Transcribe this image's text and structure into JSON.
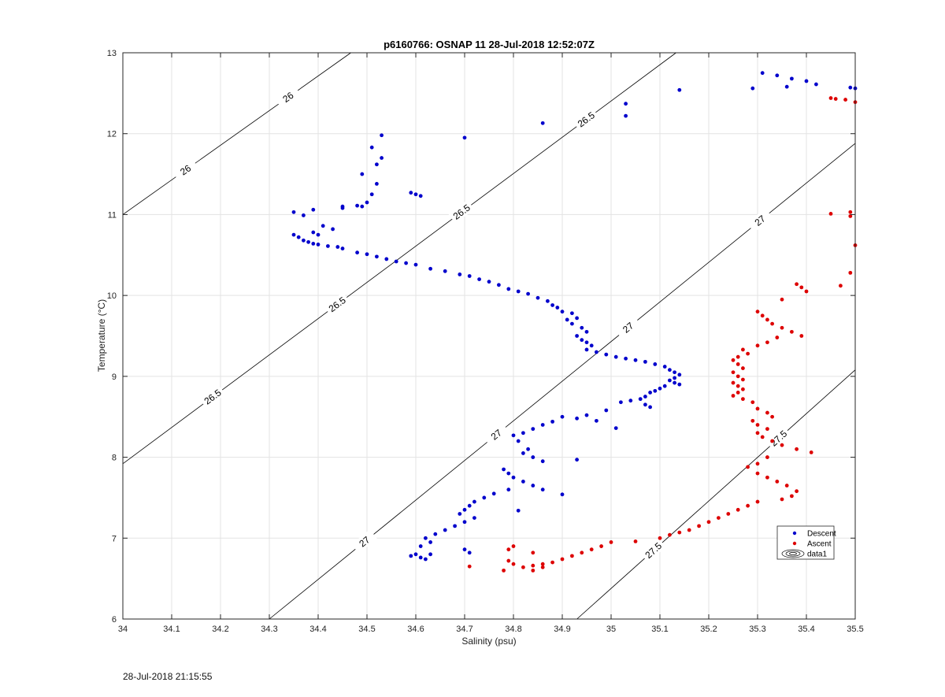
{
  "chart_data": {
    "type": "scatter",
    "title": "p6160766: OSNAP 11 28-Jul-2018 12:52:07Z",
    "xlabel": "Salinity (psu)",
    "ylabel": "Temperature (°C)",
    "xlim": [
      34,
      35.5
    ],
    "ylim": [
      6,
      13
    ],
    "xticks": [
      "34",
      "34.1",
      "34.2",
      "34.3",
      "34.4",
      "34.5",
      "34.6",
      "34.7",
      "34.8",
      "34.9",
      "35",
      "35.1",
      "35.2",
      "35.3",
      "35.4",
      "35.5"
    ],
    "yticks": [
      "6",
      "7",
      "8",
      "9",
      "10",
      "11",
      "12",
      "13"
    ],
    "grid": true,
    "legend_position": "lower-right",
    "isopycnals": [
      {
        "label": "26",
        "points": [
          [
            34.0,
            11.0
          ],
          [
            34.467,
            13.0
          ]
        ]
      },
      {
        "label": "26.5",
        "points": [
          [
            34.0,
            7.92
          ],
          [
            35.133,
            13.0
          ]
        ]
      },
      {
        "label": "27",
        "points": [
          [
            34.3,
            6.0
          ],
          [
            35.5,
            11.88
          ]
        ]
      },
      {
        "label": "27.5",
        "points": [
          [
            34.93,
            6.0
          ],
          [
            35.5,
            9.08
          ]
        ]
      }
    ],
    "series": [
      {
        "name": "Descent",
        "color": "#0000cc",
        "points": [
          [
            34.53,
            11.98
          ],
          [
            34.51,
            11.83
          ],
          [
            34.53,
            11.7
          ],
          [
            34.52,
            11.62
          ],
          [
            34.49,
            11.5
          ],
          [
            34.52,
            11.38
          ],
          [
            34.51,
            11.25
          ],
          [
            34.59,
            11.27
          ],
          [
            34.6,
            11.25
          ],
          [
            34.61,
            11.23
          ],
          [
            34.7,
            11.95
          ],
          [
            34.86,
            12.13
          ],
          [
            35.03,
            12.37
          ],
          [
            35.03,
            12.22
          ],
          [
            35.14,
            12.54
          ],
          [
            35.31,
            12.75
          ],
          [
            35.34,
            12.72
          ],
          [
            35.37,
            12.68
          ],
          [
            35.4,
            12.65
          ],
          [
            35.42,
            12.61
          ],
          [
            35.29,
            12.56
          ],
          [
            35.36,
            12.58
          ],
          [
            35.49,
            12.57
          ],
          [
            35.5,
            12.56
          ],
          [
            34.35,
            11.03
          ],
          [
            34.37,
            10.99
          ],
          [
            34.39,
            11.06
          ],
          [
            34.45,
            11.1
          ],
          [
            34.48,
            11.11
          ],
          [
            34.45,
            11.08
          ],
          [
            34.5,
            11.15
          ],
          [
            34.49,
            11.1
          ],
          [
            34.41,
            10.86
          ],
          [
            34.43,
            10.82
          ],
          [
            34.39,
            10.78
          ],
          [
            34.4,
            10.75
          ],
          [
            34.35,
            10.75
          ],
          [
            34.36,
            10.72
          ],
          [
            34.37,
            10.68
          ],
          [
            34.38,
            10.66
          ],
          [
            34.39,
            10.64
          ],
          [
            34.4,
            10.63
          ],
          [
            34.42,
            10.61
          ],
          [
            34.44,
            10.6
          ],
          [
            34.45,
            10.58
          ],
          [
            34.48,
            10.53
          ],
          [
            34.5,
            10.51
          ],
          [
            34.52,
            10.48
          ],
          [
            34.54,
            10.45
          ],
          [
            34.56,
            10.42
          ],
          [
            34.58,
            10.4
          ],
          [
            34.6,
            10.38
          ],
          [
            34.63,
            10.33
          ],
          [
            34.66,
            10.3
          ],
          [
            34.69,
            10.26
          ],
          [
            34.71,
            10.24
          ],
          [
            34.73,
            10.2
          ],
          [
            34.75,
            10.17
          ],
          [
            34.77,
            10.13
          ],
          [
            34.79,
            10.08
          ],
          [
            34.81,
            10.05
          ],
          [
            34.83,
            10.02
          ],
          [
            34.85,
            9.97
          ],
          [
            34.87,
            9.93
          ],
          [
            34.88,
            9.88
          ],
          [
            34.89,
            9.85
          ],
          [
            34.9,
            9.8
          ],
          [
            34.92,
            9.78
          ],
          [
            34.93,
            9.72
          ],
          [
            34.91,
            9.7
          ],
          [
            34.92,
            9.65
          ],
          [
            34.94,
            9.6
          ],
          [
            34.95,
            9.55
          ],
          [
            34.93,
            9.5
          ],
          [
            34.94,
            9.45
          ],
          [
            34.95,
            9.42
          ],
          [
            34.96,
            9.38
          ],
          [
            34.95,
            9.33
          ],
          [
            34.97,
            9.3
          ],
          [
            34.99,
            9.27
          ],
          [
            35.01,
            9.24
          ],
          [
            35.03,
            9.22
          ],
          [
            35.05,
            9.2
          ],
          [
            35.07,
            9.18
          ],
          [
            35.09,
            9.15
          ],
          [
            35.11,
            9.12
          ],
          [
            35.12,
            9.08
          ],
          [
            35.13,
            9.05
          ],
          [
            35.14,
            9.02
          ],
          [
            35.13,
            8.98
          ],
          [
            35.12,
            8.95
          ],
          [
            35.13,
            8.92
          ],
          [
            35.14,
            8.9
          ],
          [
            35.11,
            8.88
          ],
          [
            35.1,
            8.85
          ],
          [
            35.09,
            8.82
          ],
          [
            35.08,
            8.8
          ],
          [
            35.07,
            8.75
          ],
          [
            35.06,
            8.72
          ],
          [
            35.04,
            8.7
          ],
          [
            35.07,
            8.65
          ],
          [
            35.08,
            8.62
          ],
          [
            35.02,
            8.68
          ],
          [
            34.99,
            8.58
          ],
          [
            35.01,
            8.36
          ],
          [
            34.97,
            8.45
          ],
          [
            34.95,
            8.52
          ],
          [
            34.93,
            8.48
          ],
          [
            34.9,
            8.5
          ],
          [
            34.88,
            8.44
          ],
          [
            34.86,
            8.4
          ],
          [
            34.84,
            8.35
          ],
          [
            34.82,
            8.3
          ],
          [
            34.8,
            8.27
          ],
          [
            34.81,
            8.2
          ],
          [
            34.83,
            8.1
          ],
          [
            34.82,
            8.05
          ],
          [
            34.84,
            8.0
          ],
          [
            34.86,
            7.95
          ],
          [
            34.93,
            7.97
          ],
          [
            34.78,
            7.85
          ],
          [
            34.79,
            7.8
          ],
          [
            34.8,
            7.75
          ],
          [
            34.82,
            7.7
          ],
          [
            34.84,
            7.65
          ],
          [
            34.86,
            7.6
          ],
          [
            34.9,
            7.54
          ],
          [
            34.79,
            7.6
          ],
          [
            34.76,
            7.55
          ],
          [
            34.74,
            7.5
          ],
          [
            34.72,
            7.45
          ],
          [
            34.71,
            7.4
          ],
          [
            34.7,
            7.35
          ],
          [
            34.81,
            7.34
          ],
          [
            34.69,
            7.3
          ],
          [
            34.72,
            7.25
          ],
          [
            34.7,
            7.2
          ],
          [
            34.68,
            7.15
          ],
          [
            34.66,
            7.1
          ],
          [
            34.64,
            7.05
          ],
          [
            34.62,
            7.0
          ],
          [
            34.63,
            6.95
          ],
          [
            34.61,
            6.9
          ],
          [
            34.7,
            6.86
          ],
          [
            34.71,
            6.82
          ],
          [
            34.6,
            6.8
          ],
          [
            34.59,
            6.78
          ],
          [
            34.61,
            6.76
          ],
          [
            34.63,
            6.8
          ],
          [
            34.62,
            6.74
          ]
        ]
      },
      {
        "name": "Ascent",
        "color": "#dd0000",
        "points": [
          [
            35.45,
            12.44
          ],
          [
            35.46,
            12.43
          ],
          [
            35.48,
            12.42
          ],
          [
            35.5,
            12.39
          ],
          [
            35.45,
            11.01
          ],
          [
            35.49,
            11.03
          ],
          [
            35.49,
            10.98
          ],
          [
            35.5,
            10.62
          ],
          [
            35.49,
            10.28
          ],
          [
            35.47,
            10.12
          ],
          [
            35.38,
            10.14
          ],
          [
            35.39,
            10.1
          ],
          [
            35.4,
            10.05
          ],
          [
            35.35,
            9.95
          ],
          [
            35.3,
            9.8
          ],
          [
            35.31,
            9.75
          ],
          [
            35.32,
            9.7
          ],
          [
            35.33,
            9.65
          ],
          [
            35.35,
            9.6
          ],
          [
            35.37,
            9.55
          ],
          [
            35.39,
            9.5
          ],
          [
            35.34,
            9.48
          ],
          [
            35.32,
            9.42
          ],
          [
            35.3,
            9.38
          ],
          [
            35.27,
            9.33
          ],
          [
            35.28,
            9.28
          ],
          [
            35.26,
            9.24
          ],
          [
            35.25,
            9.2
          ],
          [
            35.26,
            9.15
          ],
          [
            35.27,
            9.1
          ],
          [
            35.25,
            9.05
          ],
          [
            35.26,
            9.0
          ],
          [
            35.27,
            8.96
          ],
          [
            35.25,
            8.92
          ],
          [
            35.26,
            8.88
          ],
          [
            35.27,
            8.84
          ],
          [
            35.26,
            8.8
          ],
          [
            35.25,
            8.76
          ],
          [
            35.27,
            8.72
          ],
          [
            35.29,
            8.68
          ],
          [
            35.3,
            8.6
          ],
          [
            35.32,
            8.55
          ],
          [
            35.33,
            8.5
          ],
          [
            35.29,
            8.45
          ],
          [
            35.3,
            8.4
          ],
          [
            35.32,
            8.35
          ],
          [
            35.3,
            8.3
          ],
          [
            35.31,
            8.25
          ],
          [
            35.33,
            8.2
          ],
          [
            35.35,
            8.15
          ],
          [
            35.38,
            8.1
          ],
          [
            35.41,
            8.06
          ],
          [
            35.32,
            8.0
          ],
          [
            35.3,
            7.92
          ],
          [
            35.28,
            7.88
          ],
          [
            35.3,
            7.8
          ],
          [
            35.32,
            7.75
          ],
          [
            35.34,
            7.7
          ],
          [
            35.36,
            7.65
          ],
          [
            35.38,
            7.58
          ],
          [
            35.37,
            7.52
          ],
          [
            35.35,
            7.48
          ],
          [
            35.3,
            7.45
          ],
          [
            35.28,
            7.4
          ],
          [
            35.26,
            7.35
          ],
          [
            35.24,
            7.3
          ],
          [
            35.22,
            7.25
          ],
          [
            35.2,
            7.2
          ],
          [
            35.18,
            7.15
          ],
          [
            35.16,
            7.1
          ],
          [
            35.14,
            7.07
          ],
          [
            35.12,
            7.04
          ],
          [
            35.1,
            7.0
          ],
          [
            35.05,
            6.96
          ],
          [
            35.0,
            6.95
          ],
          [
            34.98,
            6.9
          ],
          [
            34.96,
            6.86
          ],
          [
            34.94,
            6.82
          ],
          [
            34.92,
            6.78
          ],
          [
            34.9,
            6.74
          ],
          [
            34.88,
            6.7
          ],
          [
            34.86,
            6.68
          ],
          [
            34.84,
            6.66
          ],
          [
            34.82,
            6.64
          ],
          [
            34.8,
            6.68
          ],
          [
            34.79,
            6.72
          ],
          [
            34.8,
            6.9
          ],
          [
            34.79,
            6.86
          ],
          [
            34.84,
            6.82
          ],
          [
            34.86,
            6.64
          ],
          [
            34.84,
            6.6
          ],
          [
            34.78,
            6.6
          ],
          [
            34.71,
            6.65
          ]
        ]
      },
      {
        "name": "data1",
        "color": "#000000",
        "points": []
      }
    ],
    "footer_timestamp": "28-Jul-2018 21:15:55"
  }
}
